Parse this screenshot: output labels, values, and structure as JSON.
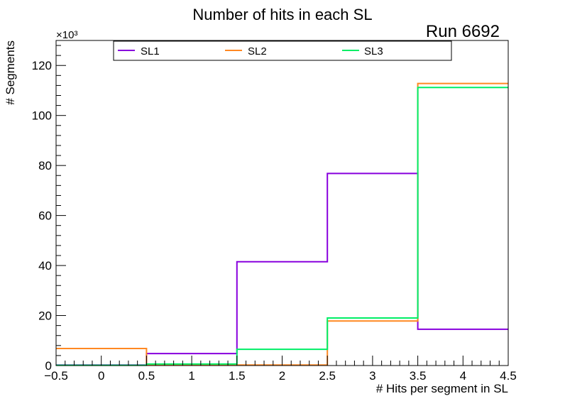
{
  "chart_data": {
    "type": "histogram-step",
    "title": "Number of hits in each SL",
    "annotation": "Run 6692",
    "xlabel": "# Hits per segment in SL",
    "ylabel": "# Segments",
    "y_exponent_label": "×10³",
    "y_scale_factor": 1000,
    "xlim": [
      -0.5,
      4.5
    ],
    "ylim": [
      0,
      130
    ],
    "x_ticks": [
      "−0.5",
      "0",
      "0.5",
      "1",
      "1.5",
      "2",
      "2.5",
      "3",
      "3.5",
      "4",
      "4.5"
    ],
    "y_ticks": [
      "0",
      "20",
      "40",
      "60",
      "80",
      "100",
      "120"
    ],
    "bin_edges": [
      -0.5,
      0.5,
      1.5,
      2.5,
      3.5,
      4.5
    ],
    "legend_position": "top",
    "series": [
      {
        "name": "SL1",
        "color": "#8800dd",
        "values": [
          0.2,
          4.8,
          41.5,
          76.8,
          14.5
        ]
      },
      {
        "name": "SL2",
        "color": "#ff8822",
        "values": [
          6.8,
          0.3,
          0.2,
          17.8,
          112.8
        ]
      },
      {
        "name": "SL3",
        "color": "#00ee66",
        "values": [
          0.1,
          0.6,
          6.5,
          19.0,
          111.2
        ]
      }
    ]
  }
}
